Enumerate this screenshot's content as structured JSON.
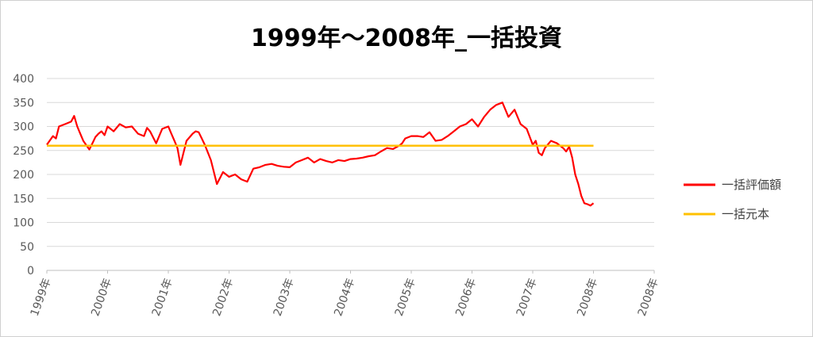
{
  "chart_data": {
    "type": "line",
    "title": "1999年～2008年_一括投資",
    "xlabel": "",
    "ylabel": "",
    "ylim": [
      0,
      400
    ],
    "yticks": [
      "0",
      "50",
      "100",
      "150",
      "200",
      "250",
      "300",
      "350",
      "400"
    ],
    "xticks": [
      "1999年",
      "2000年",
      "2001年",
      "2002年",
      "2003年",
      "2004年",
      "2005年",
      "2006年",
      "2007年",
      "2008年",
      "2008年"
    ],
    "grid": true,
    "legend_position": "right",
    "series": [
      {
        "name": "一括評価額",
        "color": "#ff0000",
        "x": [
          0.0,
          0.1,
          0.15,
          0.2,
          0.3,
          0.4,
          0.45,
          0.5,
          0.55,
          0.6,
          0.7,
          0.75,
          0.8,
          0.85,
          0.9,
          0.95,
          1.0,
          1.1,
          1.2,
          1.3,
          1.4,
          1.5,
          1.6,
          1.65,
          1.7,
          1.8,
          1.9,
          2.0,
          2.05,
          2.1,
          2.15,
          2.2,
          2.3,
          2.4,
          2.45,
          2.5,
          2.6,
          2.7,
          2.8,
          2.9,
          3.0,
          3.1,
          3.2,
          3.3,
          3.4,
          3.5,
          3.6,
          3.7,
          3.8,
          3.9,
          4.0,
          4.1,
          4.2,
          4.3,
          4.4,
          4.5,
          4.6,
          4.7,
          4.8,
          4.9,
          5.0,
          5.1,
          5.2,
          5.3,
          5.4,
          5.5,
          5.6,
          5.7,
          5.8,
          5.85,
          5.9,
          6.0,
          6.1,
          6.2,
          6.3,
          6.4,
          6.5,
          6.6,
          6.7,
          6.8,
          6.9,
          7.0,
          7.1,
          7.2,
          7.3,
          7.4,
          7.5,
          7.6,
          7.7,
          7.8,
          7.9,
          8.0,
          8.05,
          8.1,
          8.15,
          8.2,
          8.3,
          8.4,
          8.5,
          8.55,
          8.6,
          8.65,
          8.7,
          8.75,
          8.8,
          8.85,
          8.9,
          8.95,
          9.0
        ],
        "y": [
          262,
          280,
          275,
          300,
          305,
          310,
          322,
          300,
          285,
          270,
          252,
          265,
          278,
          285,
          290,
          282,
          300,
          290,
          305,
          298,
          300,
          285,
          280,
          297,
          290,
          265,
          295,
          300,
          285,
          270,
          255,
          220,
          270,
          285,
          290,
          288,
          262,
          230,
          180,
          205,
          195,
          200,
          190,
          185,
          212,
          215,
          220,
          222,
          218,
          216,
          215,
          225,
          230,
          235,
          225,
          232,
          228,
          225,
          230,
          228,
          232,
          233,
          235,
          238,
          240,
          248,
          255,
          253,
          260,
          265,
          275,
          280,
          280,
          278,
          288,
          270,
          272,
          280,
          290,
          300,
          305,
          315,
          300,
          320,
          335,
          345,
          350,
          320,
          335,
          305,
          295,
          262,
          270,
          245,
          240,
          255,
          270,
          265,
          255,
          248,
          258,
          235,
          200,
          180,
          155,
          140,
          138,
          135,
          140
        ]
      },
      {
        "name": "一括元本",
        "color": "#ffc000",
        "x": [
          0,
          9
        ],
        "y": [
          260,
          260
        ]
      }
    ]
  }
}
